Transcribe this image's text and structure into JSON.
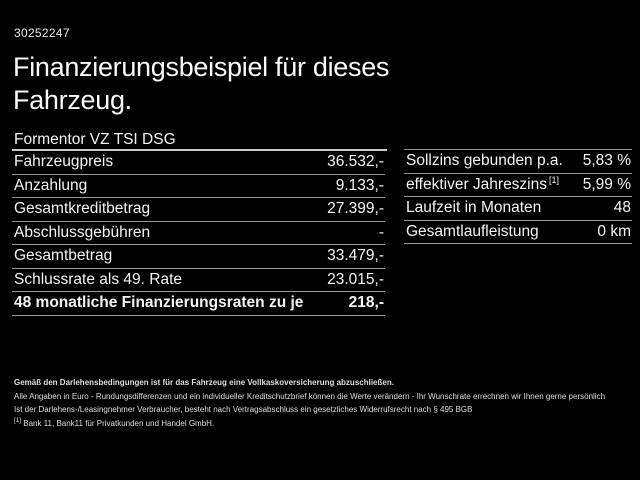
{
  "page": {
    "ref_id": "30252247",
    "title_lines": {
      "line1": "Finanzierungsbeispiel für dieses",
      "line2": "Fahrzeug."
    },
    "model": "Formentor VZ TSI DSG"
  },
  "left_table": {
    "rows": [
      {
        "label": "Fahrzeugpreis",
        "value": "36.532,-"
      },
      {
        "label": "Anzahlung",
        "value": "9.133,-"
      },
      {
        "label": "Gesamtkreditbetrag",
        "value": "27.399,-"
      },
      {
        "label": "Abschlussgebühren",
        "value": "-"
      },
      {
        "label": "Gesamtbetrag",
        "value": "33.479,-"
      },
      {
        "label": "Schlussrate als 49. Rate",
        "value": "23.015,-"
      },
      {
        "label": "48 monatliche Finanzierungsraten zu je",
        "value": "218,-"
      }
    ]
  },
  "right_table": {
    "rows": [
      {
        "label": "Sollzins gebunden p.a.",
        "value": "5,83 %"
      },
      {
        "label": "effektiver Jahreszins",
        "sup": "[1]",
        "value": "5,99 %"
      },
      {
        "label": "Laufzeit in Monaten",
        "value": "48"
      },
      {
        "label": "Gesamtlaufleistung",
        "value": "0 km"
      }
    ]
  },
  "footer": {
    "bold_note": "Gemäß den Darlehensbedingungen ist für das Fahrzeug eine Vollkaskoversicherung abzuschließen.",
    "note2": "Alle Angaben in Euro - Rundungsdifferenzen und ein individueller Kreditschutzbrief können die Werte verändern - Ihr Wunschrate errechnen wir Ihnen gerne persönlich",
    "note3": "Ist der Darlehens-/Leasingnehmer Verbraucher, besteht nach Vertragsabschluss ein gesetzliches Widerrufsrecht nach § 495 BGB",
    "footnote_marker": "[1]",
    "footnote_text": "Bank 11, Bank11 für Privatkunden und Handel GmbH."
  },
  "colors": {
    "background": "#000000",
    "text": "#f4f4f4",
    "divider": "#979797",
    "header_divider": "#c9c9c9"
  }
}
